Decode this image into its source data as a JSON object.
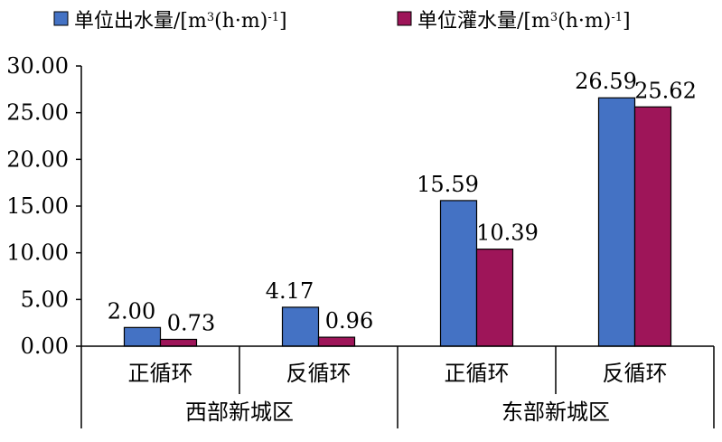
{
  "chart_data": {
    "type": "bar",
    "title": "",
    "xlabel": "",
    "ylabel": "",
    "ylim": [
      0,
      30
    ],
    "yticks": [
      "0.00",
      "5.00",
      "10.00",
      "15.00",
      "20.00",
      "25.00",
      "30.00"
    ],
    "grid": false,
    "legend_position": "top",
    "categories": [
      "正循环",
      "反循环",
      "正循环",
      "反循环"
    ],
    "groups": [
      {
        "label": "西部新城区",
        "categories": [
          "正循环",
          "反循环"
        ]
      },
      {
        "label": "东部新城区",
        "categories": [
          "正循环",
          "反循环"
        ]
      }
    ],
    "series": [
      {
        "name": "单位出水量/[m³(h·m)⁻¹]",
        "name_parts": {
          "prefix": "单位出水量/[m",
          "sup1": "3",
          "middle": "(h·m)",
          "sup2": "-1",
          "suffix": "]"
        },
        "color": "#4472C4",
        "values": [
          2.0,
          4.17,
          15.59,
          26.59
        ],
        "labels": [
          "2.00",
          "4.17",
          "15.59",
          "26.59"
        ]
      },
      {
        "name": "单位灌水量/[m³(h·m)⁻¹]",
        "name_parts": {
          "prefix": "单位灌水量/[m",
          "sup1": "3",
          "middle": "(h·m)",
          "sup2": "-1",
          "suffix": "]"
        },
        "color": "#9E1559",
        "values": [
          0.73,
          0.96,
          10.39,
          25.62
        ],
        "labels": [
          "0.73",
          "0.96",
          "10.39",
          "25.62"
        ]
      }
    ]
  }
}
